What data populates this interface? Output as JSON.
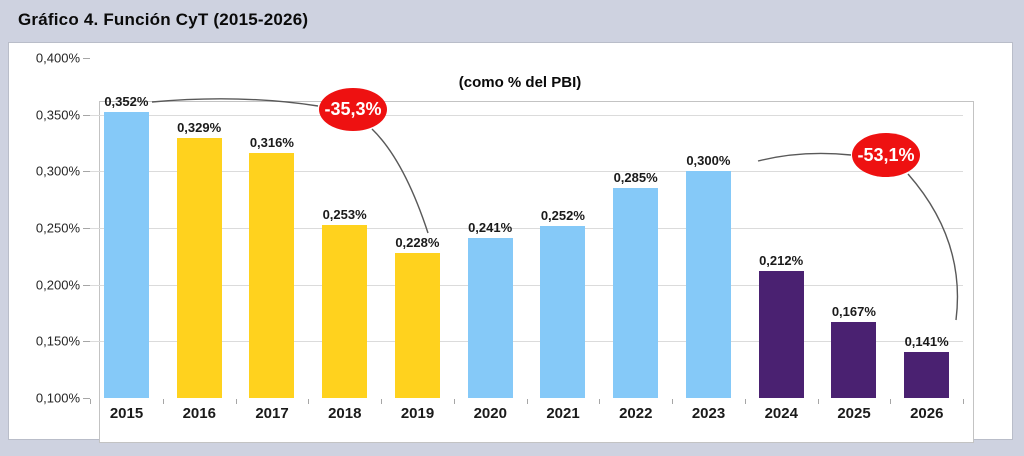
{
  "page": {
    "title": "Gráfico 4. Función CyT (2015-2026)"
  },
  "chart_data": {
    "type": "bar",
    "title": "Gráfico 4. Función CyT (2015-2026)",
    "subtitle": "(como % del PBI)",
    "categories": [
      "2015",
      "2016",
      "2017",
      "2018",
      "2019",
      "2020",
      "2021",
      "2022",
      "2023",
      "2024",
      "2025",
      "2026"
    ],
    "values": [
      0.352,
      0.329,
      0.316,
      0.253,
      0.228,
      0.241,
      0.252,
      0.285,
      0.3,
      0.212,
      0.167,
      0.141
    ],
    "value_labels": [
      "0,352%",
      "0,329%",
      "0,316%",
      "0,253%",
      "0,228%",
      "0,241%",
      "0,252%",
      "0,285%",
      "0,300%",
      "0,212%",
      "0,167%",
      "0,141%"
    ],
    "unit": "% del PBI",
    "ylim": [
      0.1,
      0.4
    ],
    "ytick_labels": [
      "0,400%",
      "0,350%",
      "0,300%",
      "0,250%",
      "0,200%",
      "0,150%",
      "0,100%"
    ],
    "grid": true,
    "legend": "none",
    "bar_color_keys": [
      "blue",
      "yellow",
      "yellow",
      "yellow",
      "yellow",
      "blue",
      "blue",
      "blue",
      "blue",
      "purple",
      "purple",
      "purple"
    ],
    "palette": {
      "blue": "#85c9f8",
      "yellow": "#ffd21e",
      "purple": "#4a2171",
      "annotation_red": "#ee1111",
      "connector_gray": "#595959"
    },
    "annotations": [
      {
        "label": "-35,3%",
        "from_year": "2015",
        "to_year": "2019"
      },
      {
        "label": "-53,1%",
        "from_year": "2023",
        "to_year": "2026"
      }
    ]
  }
}
